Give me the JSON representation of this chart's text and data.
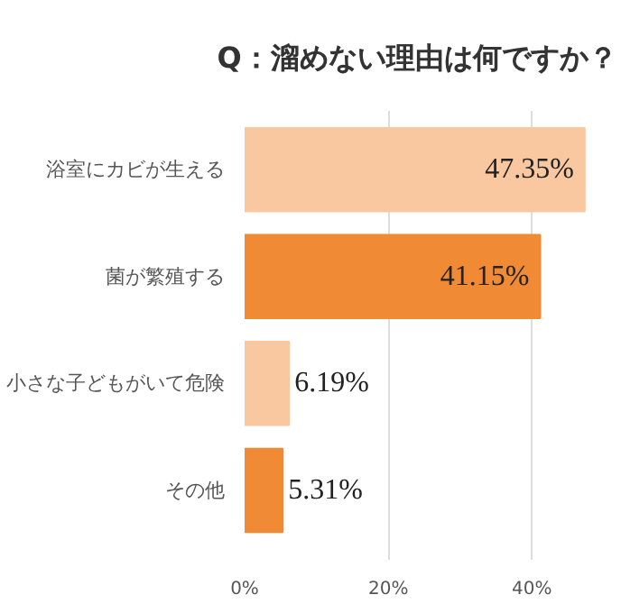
{
  "chart_data": {
    "type": "bar",
    "orientation": "horizontal",
    "title": "Q：溜めない理由は何ですか？",
    "categories": [
      "浴室にカビが生える",
      "菌が繁殖する",
      "小さな子どもがいて危険",
      "その他"
    ],
    "values": [
      47.35,
      41.15,
      6.19,
      5.31
    ],
    "colors": [
      "#f9c8a0",
      "#f08a35",
      "#f9c8a0",
      "#f08a35"
    ],
    "value_labels": [
      "47.35%",
      "41.15%",
      "6.19%",
      "5.31%"
    ],
    "xlim": [
      0,
      48
    ],
    "xticks": [
      {
        "value": 0,
        "label": "0%"
      },
      {
        "value": 20,
        "label": "20%"
      },
      {
        "value": 40,
        "label": "40%"
      }
    ],
    "grid": "x"
  }
}
